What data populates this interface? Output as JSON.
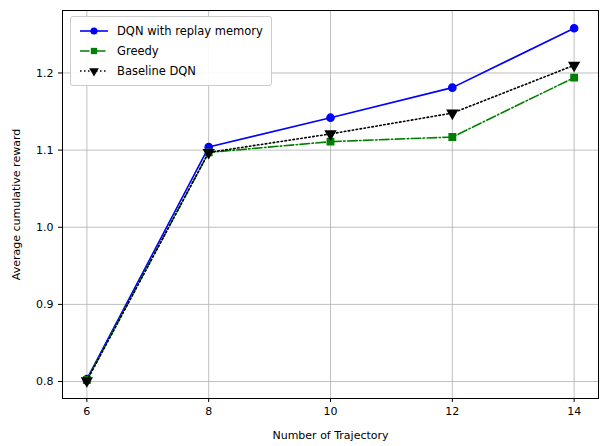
{
  "chart_data": {
    "type": "line",
    "x_label": "Number of Trajectory",
    "y_label": "Average cumulative reward",
    "x": [
      6,
      8,
      10,
      12,
      14
    ],
    "series": [
      {
        "name": "DQN with replay memory",
        "color": "#0000ff",
        "marker": "circle",
        "line_style": "solid",
        "values": [
          0.803,
          1.104,
          1.142,
          1.181,
          1.258
        ]
      },
      {
        "name": "Greedy",
        "color": "#008000",
        "marker": "square",
        "line_style": "dashdot",
        "values": [
          0.802,
          1.097,
          1.111,
          1.117,
          1.194
        ]
      },
      {
        "name": "Baseline DQN",
        "color": "#000000",
        "marker": "triangle_down",
        "line_style": "dotted",
        "values": [
          0.801,
          1.097,
          1.121,
          1.148,
          1.21
        ]
      }
    ],
    "xlim": [
      5.6,
      14.4
    ],
    "ylim": [
      0.778,
      1.281
    ],
    "xticks": [
      6,
      8,
      10,
      12,
      14
    ],
    "yticks": [
      0.8,
      0.9,
      {
        "value": 1,
        "label": "1.0"
      },
      1.1,
      1.2
    ],
    "grid": true,
    "legend": "upper left"
  }
}
